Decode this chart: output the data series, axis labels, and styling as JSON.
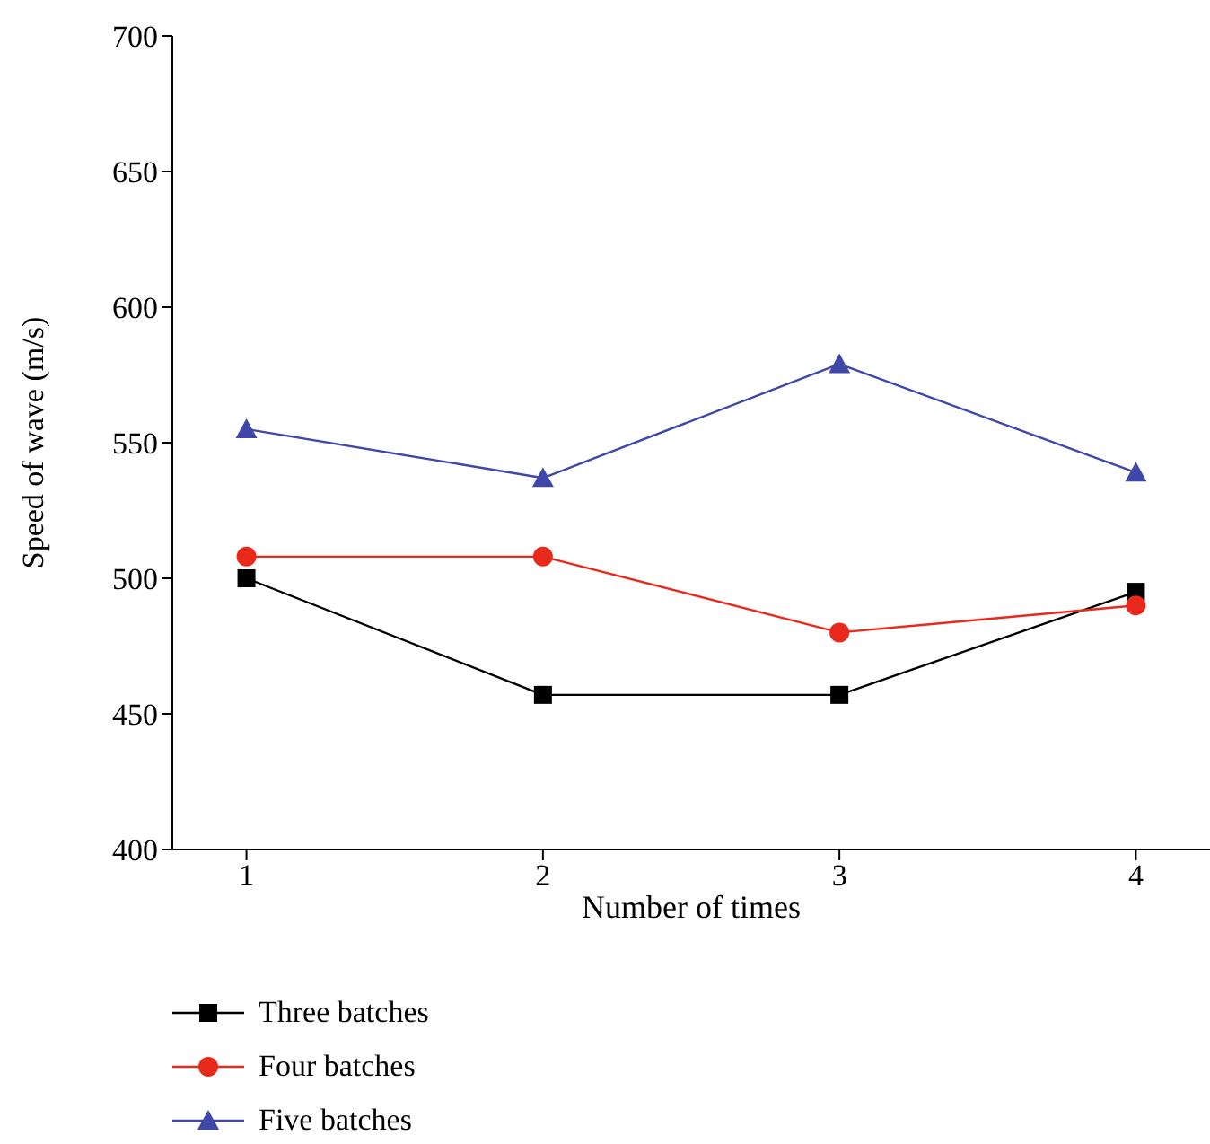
{
  "chart_data": {
    "type": "line",
    "xlabel": "Number of times",
    "ylabel": "Speed of wave (m/s)",
    "x": [
      1,
      2,
      3,
      4
    ],
    "xlim": [
      0.75,
      4.25
    ],
    "xticks": [
      1,
      2,
      3,
      4
    ],
    "ylim": [
      400,
      700
    ],
    "yticks": [
      400,
      450,
      500,
      550,
      600,
      650,
      700
    ],
    "grid": false,
    "legend": "bottom left",
    "series": [
      {
        "name": "Three batches",
        "color": "#000000",
        "marker": "square",
        "values": [
          500,
          457,
          457,
          495
        ]
      },
      {
        "name": "Four batches",
        "color": "#e8291c",
        "marker": "circle",
        "values": [
          508,
          508,
          480,
          490
        ]
      },
      {
        "name": "Five batches",
        "color": "#3f48a8",
        "marker": "triangle",
        "values": [
          555,
          537,
          579,
          539
        ]
      }
    ]
  }
}
